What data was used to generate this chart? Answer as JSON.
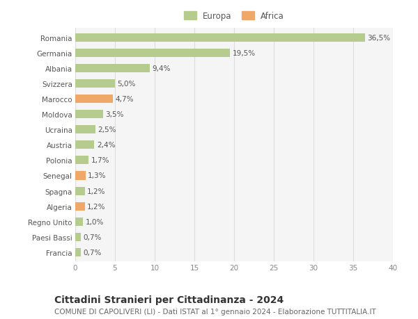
{
  "categories": [
    "Romania",
    "Germania",
    "Albania",
    "Svizzera",
    "Marocco",
    "Moldova",
    "Ucraina",
    "Austria",
    "Polonia",
    "Senegal",
    "Spagna",
    "Algeria",
    "Regno Unito",
    "Paesi Bassi",
    "Francia"
  ],
  "values": [
    36.5,
    19.5,
    9.4,
    5.0,
    4.7,
    3.5,
    2.5,
    2.4,
    1.7,
    1.3,
    1.2,
    1.2,
    1.0,
    0.7,
    0.7
  ],
  "labels": [
    "36,5%",
    "19,5%",
    "9,4%",
    "5,0%",
    "4,7%",
    "3,5%",
    "2,5%",
    "2,4%",
    "1,7%",
    "1,3%",
    "1,2%",
    "1,2%",
    "1,0%",
    "0,7%",
    "0,7%"
  ],
  "continent": [
    "Europa",
    "Europa",
    "Europa",
    "Europa",
    "Africa",
    "Europa",
    "Europa",
    "Europa",
    "Europa",
    "Africa",
    "Europa",
    "Africa",
    "Europa",
    "Europa",
    "Europa"
  ],
  "color_europa": "#b5cc8e",
  "color_africa": "#f0a868",
  "background_color": "#ffffff",
  "plot_bg_color": "#f5f5f5",
  "grid_color": "#dddddd",
  "xlim": [
    0,
    40
  ],
  "xticks": [
    0,
    5,
    10,
    15,
    20,
    25,
    30,
    35,
    40
  ],
  "title": "Cittadini Stranieri per Cittadinanza - 2024",
  "subtitle": "COMUNE DI CAPOLIVERI (LI) - Dati ISTAT al 1° gennaio 2024 - Elaborazione TUTTITALIA.IT",
  "legend_europa": "Europa",
  "legend_africa": "Africa",
  "title_fontsize": 10,
  "subtitle_fontsize": 7.5,
  "tick_fontsize": 7.5,
  "label_fontsize": 7.5,
  "legend_fontsize": 8.5
}
